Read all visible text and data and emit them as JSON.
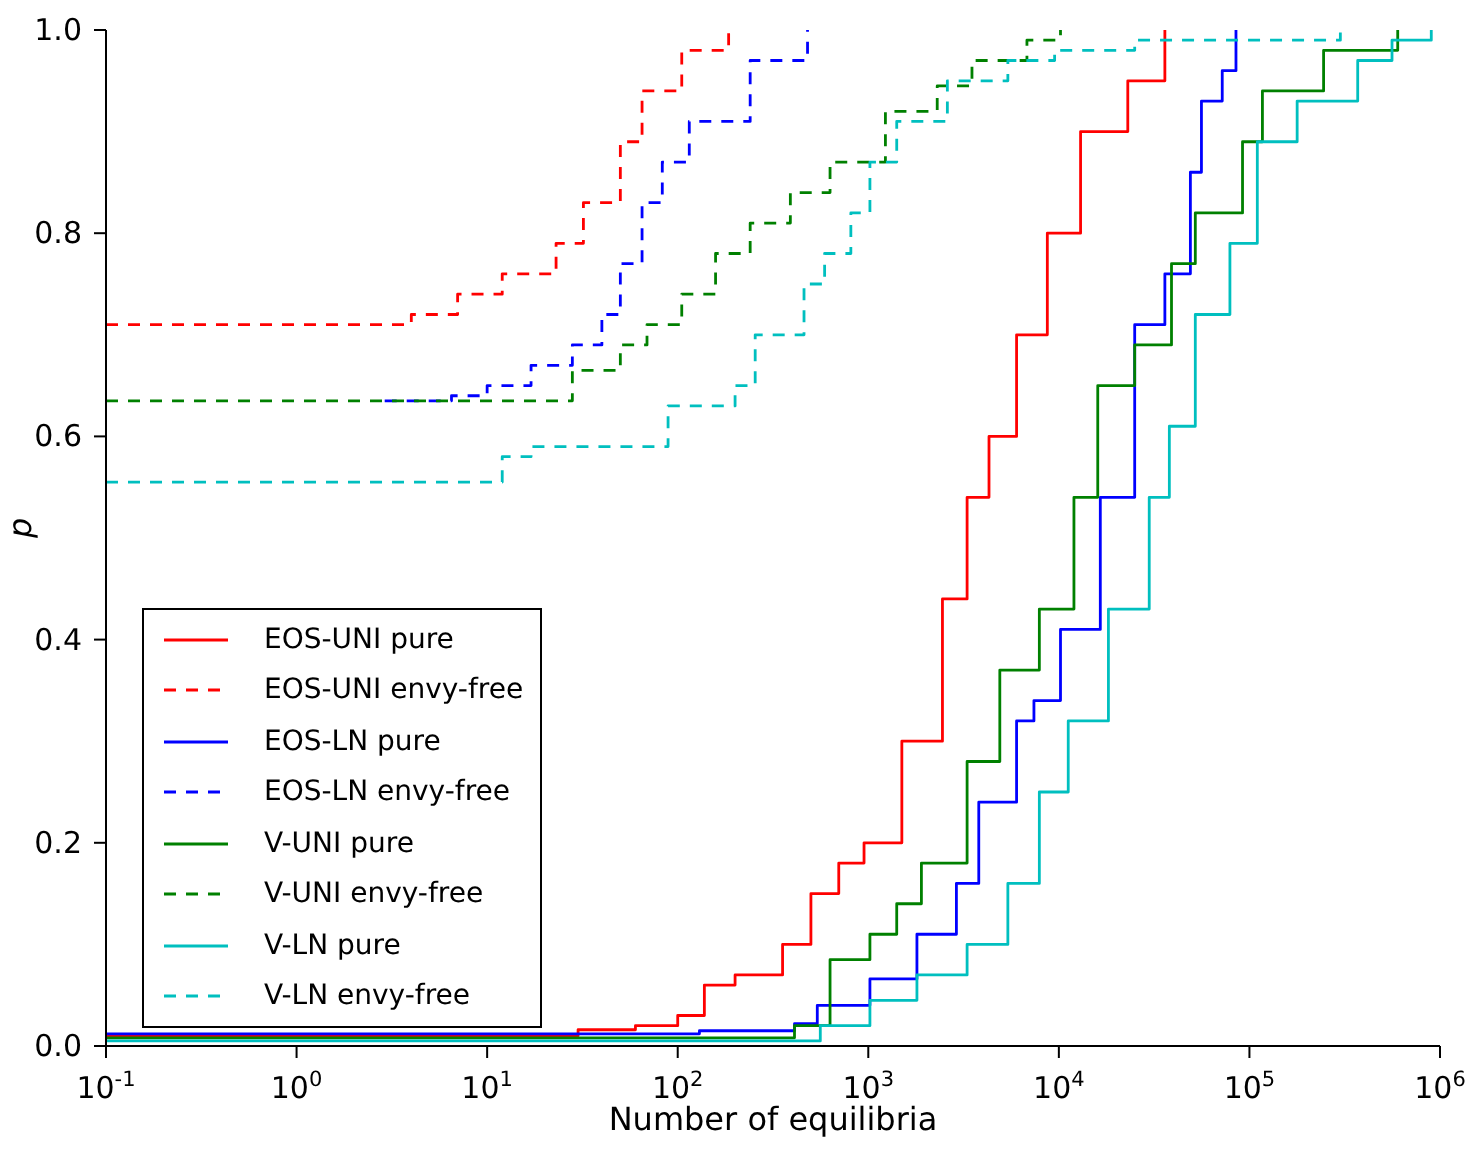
{
  "chart_data": {
    "type": "step",
    "xlabel": "Number of equilibria",
    "ylabel": "p",
    "log": "x",
    "xlim": [
      0.1,
      1000000
    ],
    "ylim": [
      0,
      1
    ],
    "xticks": [
      {
        "value": 0.1,
        "label": "10$^{-1}$"
      },
      {
        "value": 1,
        "label": "10$^{0}$"
      },
      {
        "value": 10,
        "label": "10$^{1}$"
      },
      {
        "value": 100,
        "label": "10$^{2}$"
      },
      {
        "value": 1000,
        "label": "10$^{3}$"
      },
      {
        "value": 10000,
        "label": "10$^{4}$"
      },
      {
        "value": 100000,
        "label": "10$^{5}$"
      },
      {
        "value": 1000000,
        "label": "10$^{6}$"
      }
    ],
    "yticks": [
      {
        "value": 0,
        "label": "0.0"
      },
      {
        "value": 0.2,
        "label": "0.2"
      },
      {
        "value": 0.4,
        "label": "0.4"
      },
      {
        "value": 0.6,
        "label": "0.6"
      },
      {
        "value": 0.8,
        "label": "0.8"
      },
      {
        "value": 1,
        "label": "1.0"
      }
    ],
    "grid": false,
    "legend": "bottom left",
    "marker": "none",
    "series": [
      {
        "name": "EOS-UNI pure",
        "color": "#ff0000",
        "line_style": "solid",
        "x": [
          0.1,
          30,
          60,
          100,
          138,
          200,
          355,
          500,
          700,
          950,
          1500,
          2450,
          3300,
          4300,
          6000,
          8700,
          13000,
          23000,
          36000
        ],
        "values": [
          0.01,
          0.016,
          0.02,
          0.03,
          0.06,
          0.07,
          0.1,
          0.15,
          0.18,
          0.2,
          0.3,
          0.44,
          0.54,
          0.6,
          0.7,
          0.8,
          0.9,
          0.95,
          1
        ]
      },
      {
        "name": "EOS-UNI envy-free",
        "color": "#ff0000",
        "line_style": "dashed",
        "x": [
          0.1,
          2.9,
          4,
          7,
          12,
          23,
          32,
          50,
          65,
          105,
          185
        ],
        "values": [
          0.71,
          0.71,
          0.72,
          0.74,
          0.76,
          0.79,
          0.83,
          0.89,
          0.94,
          0.98,
          1
        ]
      },
      {
        "name": "EOS-LN pure",
        "color": "#0000ff",
        "line_style": "solid",
        "x": [
          0.1,
          130,
          410,
          540,
          1020,
          1800,
          2900,
          3800,
          6000,
          7400,
          10200,
          16500,
          25000,
          36000,
          49000,
          56000,
          72000,
          85000
        ],
        "values": [
          0.012,
          0.015,
          0.022,
          0.04,
          0.066,
          0.11,
          0.16,
          0.24,
          0.32,
          0.34,
          0.41,
          0.54,
          0.71,
          0.76,
          0.86,
          0.93,
          0.96,
          1
        ]
      },
      {
        "name": "EOS-LN envy-free",
        "color": "#0000ff",
        "line_style": "dashed",
        "x": [
          2.9,
          6.5,
          10,
          17,
          28,
          40,
          50,
          65,
          83,
          115,
          240,
          480
        ],
        "values": [
          0.635,
          0.64,
          0.65,
          0.67,
          0.69,
          0.72,
          0.77,
          0.83,
          0.87,
          0.91,
          0.97,
          1
        ]
      },
      {
        "name": "V-UNI pure",
        "color": "#008000",
        "line_style": "solid",
        "x": [
          0.1,
          410,
          630,
          1020,
          1410,
          1900,
          3300,
          4900,
          7900,
          12000,
          16000,
          25000,
          39000,
          52000,
          92000,
          117000,
          245000,
          600000
        ],
        "values": [
          0.008,
          0.02,
          0.085,
          0.11,
          0.14,
          0.18,
          0.28,
          0.37,
          0.43,
          0.54,
          0.65,
          0.69,
          0.77,
          0.82,
          0.89,
          0.94,
          0.98,
          1
        ]
      },
      {
        "name": "V-UNI envy-free",
        "color": "#008000",
        "line_style": "dashed",
        "x": [
          0.1,
          28,
          50,
          69,
          105,
          158,
          240,
          390,
          630,
          1230,
          2300,
          3500,
          6800,
          10200
        ],
        "values": [
          0.635,
          0.665,
          0.69,
          0.71,
          0.74,
          0.78,
          0.81,
          0.84,
          0.87,
          0.92,
          0.945,
          0.97,
          0.99,
          1
        ]
      },
      {
        "name": "V-LN pure",
        "color": "#00bfbf",
        "line_style": "solid",
        "x": [
          0.1,
          560,
          1020,
          1800,
          3300,
          5400,
          7900,
          11200,
          18200,
          29800,
          38000,
          52000,
          79000,
          110000,
          178000,
          370000,
          560000,
          900000
        ],
        "values": [
          0.005,
          0.02,
          0.045,
          0.07,
          0.1,
          0.16,
          0.25,
          0.32,
          0.43,
          0.54,
          0.61,
          0.72,
          0.79,
          0.89,
          0.93,
          0.97,
          0.99,
          1
        ]
      },
      {
        "name": "V-LN envy-free",
        "color": "#00bfbf",
        "line_style": "dashed",
        "x": [
          0.1,
          10,
          12,
          17,
          65,
          89,
          115,
          200,
          255,
          460,
          590,
          810,
          1020,
          1410,
          2600,
          5400,
          9500,
          25000,
          300000
        ],
        "values": [
          0.555,
          0.555,
          0.58,
          0.59,
          0.59,
          0.63,
          0.63,
          0.65,
          0.7,
          0.75,
          0.78,
          0.82,
          0.87,
          0.91,
          0.95,
          0.97,
          0.98,
          0.99,
          1
        ]
      }
    ]
  }
}
